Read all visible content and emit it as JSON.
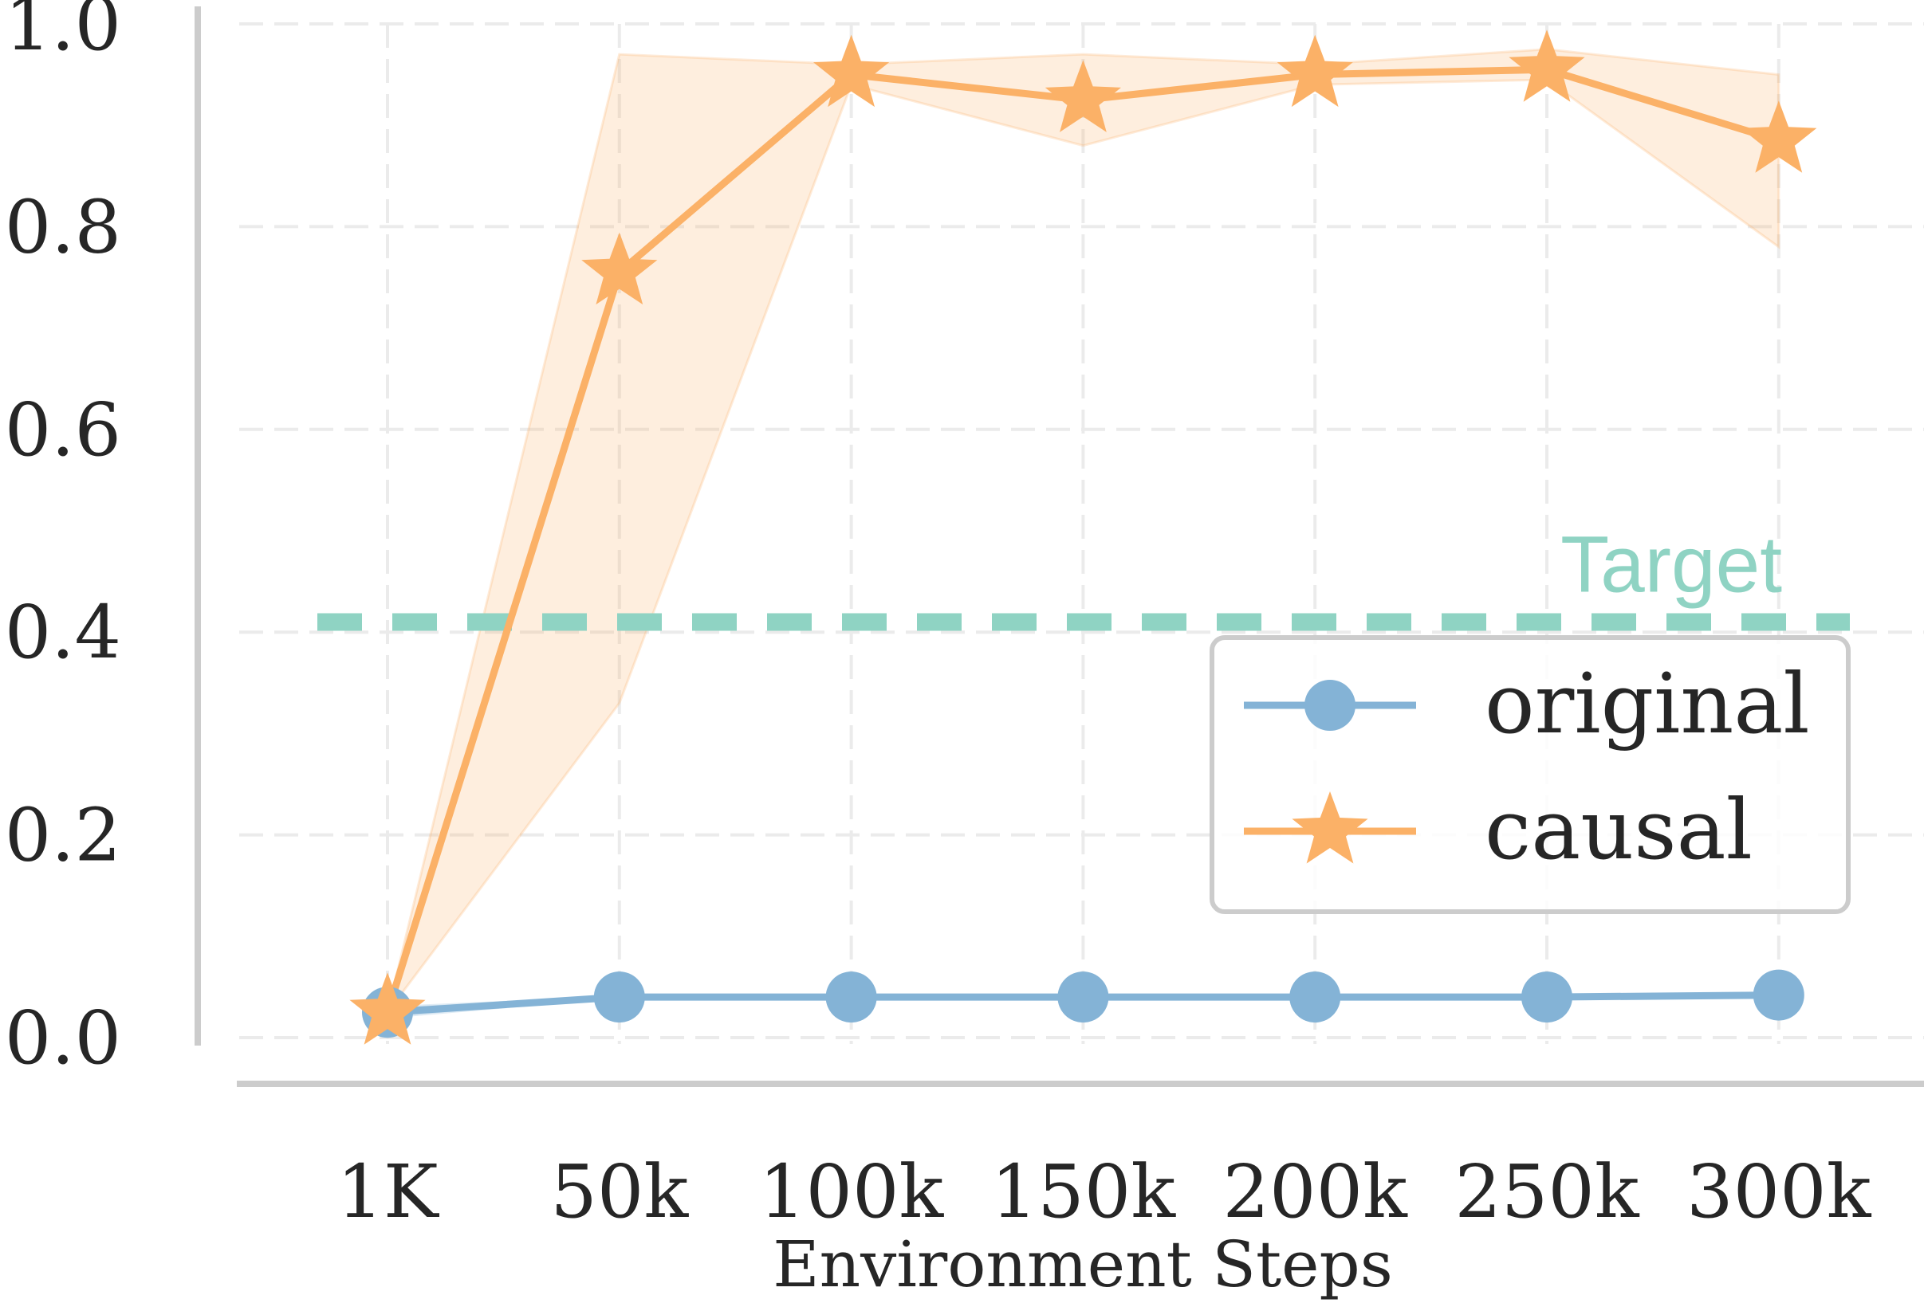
{
  "chart_data": {
    "type": "line",
    "categories": [
      "1K",
      "50k",
      "100k",
      "150k",
      "200k",
      "250k",
      "300k"
    ],
    "xlabel": "Environment Steps",
    "ylabel": "",
    "ylim": [
      0.0,
      1.0
    ],
    "yticks": [
      "0.0",
      "0.2",
      "0.4",
      "0.6",
      "0.8",
      "1.0"
    ],
    "grid": true,
    "legend_position": "center-right",
    "series": [
      {
        "name": "original",
        "color": "#84B3D6",
        "marker": "circle",
        "values": [
          0.025,
          0.04,
          0.04,
          0.04,
          0.04,
          0.04,
          0.042
        ],
        "lower": [
          0.02,
          0.04,
          0.04,
          0.04,
          0.04,
          0.04,
          0.042
        ],
        "upper": [
          0.03,
          0.04,
          0.04,
          0.04,
          0.04,
          0.04,
          0.042
        ]
      },
      {
        "name": "causal",
        "color": "#FBB167",
        "marker": "star",
        "values": [
          0.025,
          0.755,
          0.95,
          0.925,
          0.95,
          0.955,
          0.885
        ],
        "lower": [
          0.025,
          0.33,
          0.94,
          0.88,
          0.94,
          0.945,
          0.78
        ],
        "upper": [
          0.025,
          0.97,
          0.96,
          0.97,
          0.96,
          0.975,
          0.95
        ]
      }
    ],
    "reference_line": {
      "label": "Target",
      "value": 0.41,
      "color": "#8FD3C3",
      "style": "dashed"
    }
  }
}
